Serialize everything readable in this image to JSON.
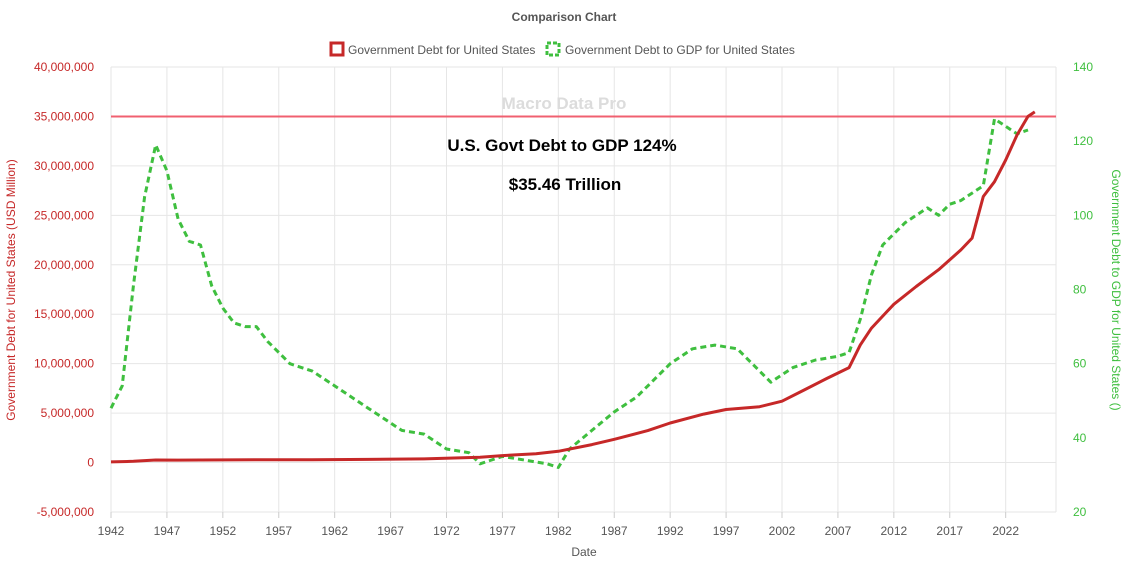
{
  "chart_data": {
    "type": "line",
    "title": "Comparison Chart",
    "xlabel": "Date",
    "ylabel_left": "Government Debt for United States (USD Million)",
    "ylabel_right": "Government Debt to GDP for United States ()",
    "x_ticks": [
      "1942",
      "1947",
      "1952",
      "1957",
      "1962",
      "1967",
      "1972",
      "1977",
      "1982",
      "1987",
      "1992",
      "1997",
      "2002",
      "2007",
      "2012",
      "2017",
      "2022"
    ],
    "xlim": [
      1942,
      2026.5
    ],
    "ylim_left": [
      -5000000,
      40000000
    ],
    "y_ticks_left": [
      "-5,000,000",
      "0",
      "5,000,000",
      "10,000,000",
      "15,000,000",
      "20,000,000",
      "25,000,000",
      "30,000,000",
      "35,000,000",
      "40,000,000"
    ],
    "ylim_right": [
      20,
      140
    ],
    "y_ticks_right": [
      "20",
      "40",
      "60",
      "80",
      "100",
      "120",
      "140"
    ],
    "grid": true,
    "legend_position": "top",
    "reference_line": {
      "value": 35000000,
      "color": "#f06070"
    },
    "watermark": "Macro Data Pro",
    "annotations": [
      "U.S. Govt Debt to GDP 124%",
      "$35.46 Trillion"
    ],
    "series": [
      {
        "name": "Government Debt for United States",
        "axis": "left",
        "color": "#c62828",
        "style": "solid",
        "x": [
          1942,
          1944,
          1946,
          1948,
          1950,
          1955,
          1960,
          1965,
          1970,
          1975,
          1977,
          1980,
          1982,
          1985,
          1987,
          1990,
          1992,
          1995,
          1997,
          2000,
          2002,
          2004,
          2006,
          2008,
          2009,
          2010,
          2012,
          2014,
          2016,
          2018,
          2019,
          2020,
          2021,
          2022,
          2023,
          2024,
          2024.6
        ],
        "values": [
          70000,
          130000,
          260000,
          250000,
          255000,
          275000,
          285000,
          315000,
          370000,
          530000,
          700000,
          900000,
          1140000,
          1820000,
          2350000,
          3230000,
          4000000,
          4900000,
          5370000,
          5650000,
          6200000,
          7350000,
          8500000,
          9600000,
          11900000,
          13600000,
          16000000,
          17800000,
          19500000,
          21500000,
          22700000,
          26900000,
          28400000,
          30600000,
          33100000,
          35000000,
          35460000
        ]
      },
      {
        "name": "Government Debt to GDP for United States",
        "axis": "right",
        "color": "#3fbf3f",
        "style": "dashed",
        "x": [
          1942,
          1943,
          1944,
          1945,
          1946,
          1947,
          1948,
          1949,
          1950,
          1951,
          1952,
          1953,
          1954,
          1955,
          1956,
          1957,
          1958,
          1960,
          1962,
          1965,
          1968,
          1970,
          1972,
          1974,
          1975,
          1977,
          1979,
          1981,
          1982,
          1983,
          1985,
          1987,
          1989,
          1990,
          1992,
          1994,
          1996,
          1998,
          2000,
          2001,
          2003,
          2005,
          2007,
          2008,
          2009,
          2010,
          2011,
          2012,
          2013,
          2014,
          2015,
          2016,
          2017,
          2018,
          2019,
          2020,
          2021,
          2022,
          2023,
          2024
        ],
        "values": [
          48,
          54,
          81,
          105,
          119,
          112,
          99,
          93,
          92,
          81,
          75,
          71,
          70,
          70,
          66,
          63,
          60,
          58,
          54,
          48,
          42,
          41,
          37,
          36,
          33,
          35,
          34,
          33,
          32,
          37,
          42,
          47,
          51,
          54,
          60,
          64,
          65,
          64,
          58,
          55,
          59,
          61,
          62,
          63,
          72,
          84,
          92,
          95,
          98,
          100,
          102,
          100,
          103,
          104,
          106,
          108,
          126,
          124,
          122,
          123
        ]
      }
    ]
  }
}
